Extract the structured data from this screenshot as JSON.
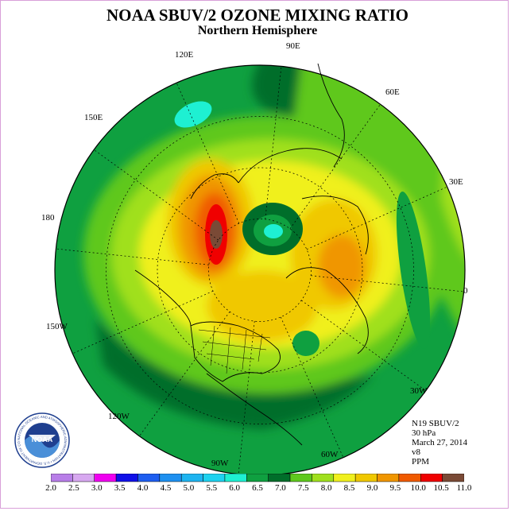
{
  "title": "NOAA SBUV/2 OZONE MIXING RATIO",
  "subtitle": "Northern Hemisphere",
  "longitude_labels": [
    "90E",
    "60E",
    "30E",
    "0",
    "30W",
    "60W",
    "90W",
    "120W",
    "150W",
    "180",
    "150E",
    "120E"
  ],
  "info": {
    "satellite": "N19 SBUV/2",
    "level": "30 hPa",
    "date": "March 27, 2014",
    "version": "v8",
    "units": "PPM"
  },
  "logo": {
    "text": "NOAA",
    "ring_text": "NATIONAL OCEANIC AND ATMOSPHERIC ADMINISTRATION • U.S. DEPARTMENT OF COMMERCE"
  },
  "colorbar": {
    "labels": [
      "2.0",
      "2.5",
      "3.0",
      "3.5",
      "4.0",
      "4.5",
      "5.0",
      "5.5",
      "6.0",
      "6.5",
      "7.0",
      "7.5",
      "8.0",
      "8.5",
      "9.0",
      "9.5",
      "10.0",
      "10.5",
      "11.0"
    ],
    "colors": [
      "#b87ee8",
      "#d7a8f0",
      "#f000f0",
      "#1010e8",
      "#1e5ef0",
      "#1e90f0",
      "#1eb4f0",
      "#1ed2f0",
      "#1ef0d2",
      "#0fa040",
      "#006e2a",
      "#5fc81e",
      "#a0e01e",
      "#f0f01e",
      "#f0c800",
      "#f09600",
      "#f05a00",
      "#f00000",
      "#7a4a36"
    ]
  }
}
